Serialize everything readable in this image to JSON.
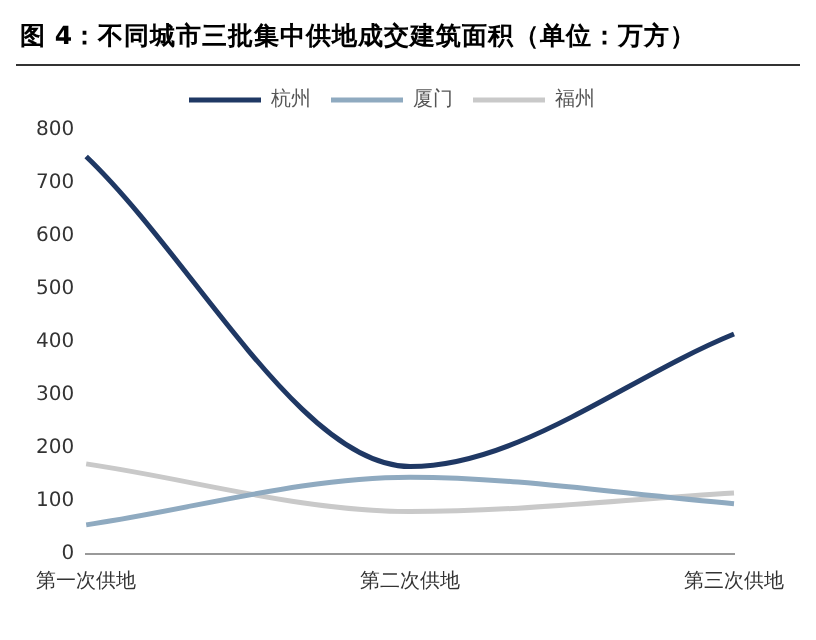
{
  "chart_data": {
    "type": "line",
    "title": "图 4：不同城市三批集中供地成交建筑面积（单位：万方）",
    "categories": [
      "第一次供地",
      "第二次供地",
      "第三次供地"
    ],
    "series": [
      {
        "name": "杭州",
        "color": "#1f3864",
        "values": [
          750,
          165,
          415
        ]
      },
      {
        "name": "厦门",
        "color": "#8faac0",
        "values": [
          55,
          145,
          95
        ]
      },
      {
        "name": "福州",
        "color": "#c9c9c9",
        "values": [
          170,
          80,
          115
        ]
      }
    ],
    "ylim": [
      0,
      800
    ],
    "yticks": [
      0,
      100,
      200,
      300,
      400,
      500,
      600,
      700,
      800
    ],
    "grid": false,
    "legend": "top",
    "marker": "none",
    "line_style": "solid"
  }
}
